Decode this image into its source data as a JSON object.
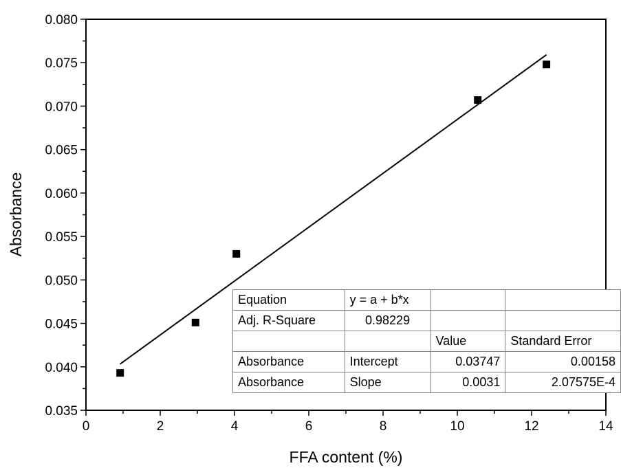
{
  "chart_data": {
    "type": "scatter",
    "xlabel": "FFA content (%)",
    "ylabel": "Absorbance",
    "xlim": [
      0,
      14
    ],
    "ylim": [
      0.035,
      0.08
    ],
    "x_ticks": [
      "0",
      "2",
      "4",
      "6",
      "8",
      "10",
      "12",
      "14"
    ],
    "y_ticks": [
      "0.035",
      "0.040",
      "0.045",
      "0.050",
      "0.055",
      "0.060",
      "0.065",
      "0.070",
      "0.075",
      "0.080"
    ],
    "grid": false,
    "series": [
      {
        "marker": "square",
        "color": "#000000",
        "x": [
          0.92,
          2.95,
          4.05,
          10.55,
          12.4
        ],
        "y": [
          0.0393,
          0.0451,
          0.053,
          0.0707,
          0.0748
        ]
      }
    ],
    "fit_line": {
      "type": "linear",
      "x_range": [
        0.92,
        12.4
      ],
      "intercept": 0.03747,
      "slope": 0.0031,
      "color": "#000000"
    },
    "fit_table": {
      "rows": [
        [
          "Equation",
          "y = a + b*x",
          "",
          ""
        ],
        [
          "Adj. R-Square",
          "0.98229",
          "",
          ""
        ],
        [
          "",
          "",
          "Value",
          "Standard Error"
        ],
        [
          "Absorbance",
          "Intercept",
          "0.03747",
          "0.00158"
        ],
        [
          "Absorbance",
          "Slope",
          "0.0031",
          "2.07575E-4"
        ]
      ]
    }
  }
}
